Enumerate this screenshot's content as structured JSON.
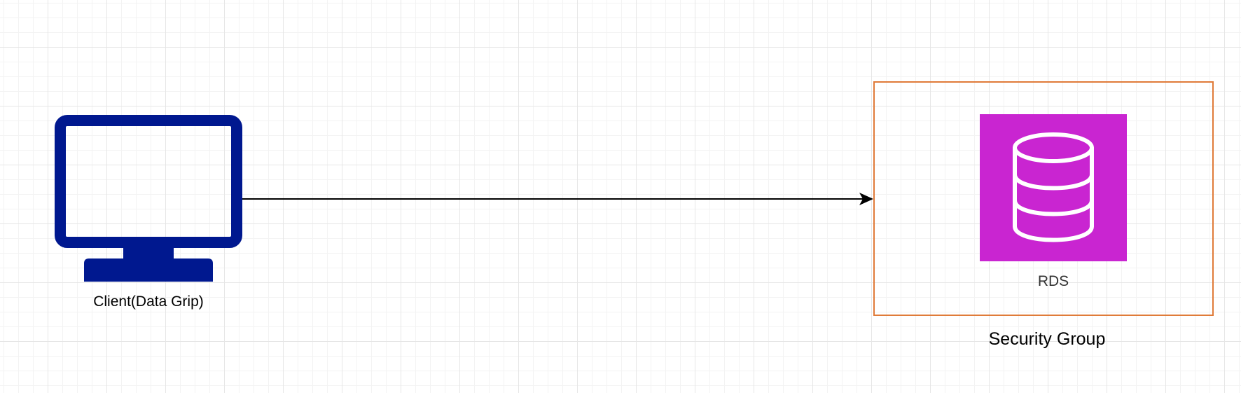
{
  "nodes": {
    "client": {
      "label": "Client(Data Grip)",
      "icon": "monitor-icon",
      "color": "#00188f"
    },
    "rds": {
      "label": "RDS",
      "icon": "database-icon",
      "tile_color": "#c925d1"
    },
    "security_group": {
      "label": "Security Group",
      "border_color": "#e07b39"
    }
  },
  "edges": [
    {
      "from": "client",
      "to": "security_group",
      "arrow": "end"
    }
  ]
}
